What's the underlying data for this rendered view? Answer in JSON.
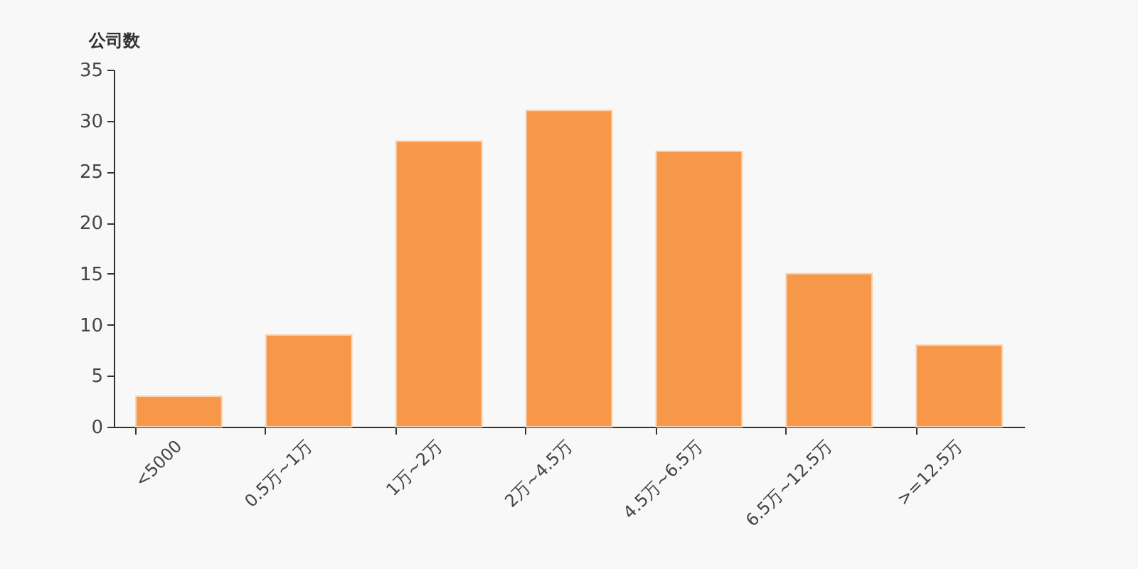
{
  "chart_data": {
    "type": "bar",
    "ylabel": "公司数",
    "categories": [
      "<5000",
      "0.5万~1万",
      "1万~2万",
      "2万~4.5万",
      "4.5万~6.5万",
      "6.5万~12.5万",
      ">=12.5万"
    ],
    "values": [
      3,
      9,
      28,
      31,
      27,
      15,
      8
    ],
    "color": "#f7974a",
    "ylim": [
      0,
      35
    ],
    "yticks": [
      0,
      5,
      10,
      15,
      20,
      25,
      30,
      35
    ]
  }
}
